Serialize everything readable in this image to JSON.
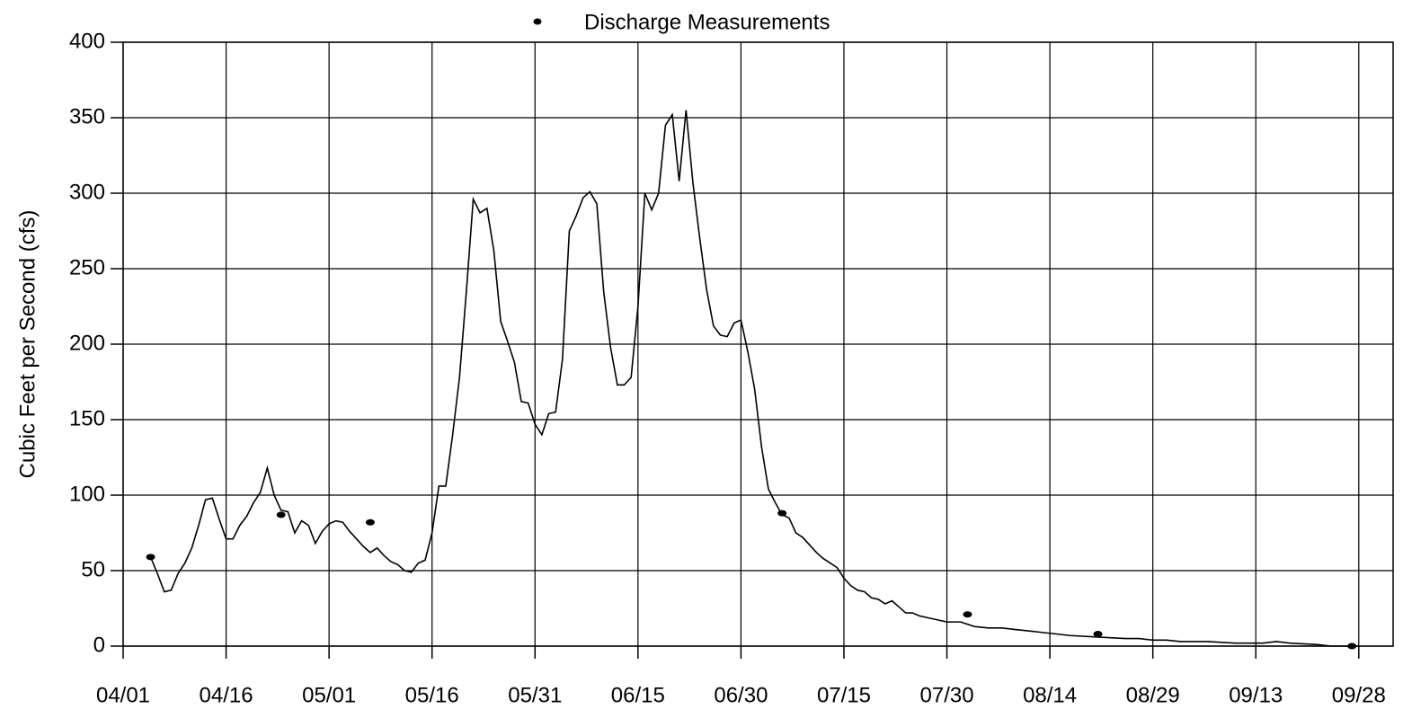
{
  "chart_data": {
    "type": "line",
    "ylabel": "Cubic Feet per Second (cfs)",
    "xlim": [
      0,
      185
    ],
    "ylim": [
      0,
      400
    ],
    "xticks": [
      {
        "value": 0,
        "label": "04/01"
      },
      {
        "value": 15,
        "label": "04/16"
      },
      {
        "value": 30,
        "label": "05/01"
      },
      {
        "value": 45,
        "label": "05/16"
      },
      {
        "value": 60,
        "label": "05/31"
      },
      {
        "value": 75,
        "label": "06/15"
      },
      {
        "value": 90,
        "label": "06/30"
      },
      {
        "value": 105,
        "label": "07/15"
      },
      {
        "value": 120,
        "label": "07/30"
      },
      {
        "value": 135,
        "label": "08/14"
      },
      {
        "value": 150,
        "label": "08/29"
      },
      {
        "value": 165,
        "label": "09/13"
      },
      {
        "value": 180,
        "label": "09/28"
      }
    ],
    "yticks": [
      0,
      50,
      100,
      150,
      200,
      250,
      300,
      350,
      400
    ],
    "grid": true,
    "legend": "top",
    "series": [
      {
        "type": "line",
        "color": "#000000",
        "x": [
          4,
          5,
          6,
          7,
          8,
          9,
          10,
          11,
          12,
          13,
          14,
          15,
          16,
          17,
          18,
          19,
          20,
          21,
          22,
          23,
          24,
          25,
          26,
          27,
          28,
          29,
          30,
          31,
          32,
          33,
          34,
          35,
          36,
          37,
          38,
          39,
          40,
          41,
          42,
          43,
          44,
          45,
          46,
          47,
          48,
          49,
          50,
          51,
          52,
          53,
          54,
          55,
          56,
          57,
          58,
          59,
          60,
          61,
          62,
          63,
          64,
          65,
          66,
          67,
          68,
          69,
          70,
          71,
          72,
          73,
          74,
          75,
          76,
          77,
          78,
          79,
          80,
          81,
          82,
          83,
          84,
          85,
          86,
          87,
          88,
          89,
          90,
          91,
          92,
          93,
          94,
          95,
          96,
          97,
          98,
          99,
          100,
          101,
          102,
          103,
          104,
          105,
          106,
          107,
          108,
          109,
          110,
          111,
          112,
          113,
          114,
          115,
          116,
          118,
          120,
          122,
          124,
          126,
          128,
          130,
          134,
          138,
          142,
          146,
          148,
          150,
          152,
          154,
          158,
          162,
          166,
          168,
          170,
          174,
          176,
          180
        ],
        "values": [
          59,
          48,
          36,
          37,
          48,
          55,
          65,
          80,
          97,
          98,
          84,
          71,
          71,
          80,
          86,
          95,
          102,
          118,
          100,
          90,
          89,
          75,
          83,
          80,
          68,
          76,
          81,
          83,
          82,
          76,
          71,
          66,
          62,
          65,
          60,
          56,
          54,
          50,
          49,
          55,
          57,
          75,
          106,
          106,
          140,
          178,
          235,
          296,
          287,
          290,
          262,
          215,
          202,
          188,
          162,
          161,
          147,
          140,
          154,
          155,
          190,
          275,
          285,
          297,
          301,
          293,
          235,
          198,
          173,
          173,
          178,
          225,
          300,
          289,
          300,
          345,
          352,
          308,
          355,
          307,
          270,
          236,
          212,
          206,
          205,
          214,
          216,
          195,
          170,
          132,
          104,
          95,
          87,
          85,
          75,
          72,
          67,
          62,
          58,
          55,
          52,
          45,
          40,
          37,
          36,
          32,
          31,
          28,
          30,
          26,
          22,
          22,
          20,
          18,
          16,
          16,
          13,
          12,
          12,
          11,
          9,
          7,
          6,
          5,
          5,
          4,
          4,
          3,
          3,
          2,
          2,
          3,
          2,
          1,
          0,
          0
        ]
      },
      {
        "type": "scatter",
        "name": "Discharge Measurements",
        "color": "#000000",
        "x": [
          4,
          23,
          36,
          96,
          123,
          142,
          179
        ],
        "values": [
          59,
          87,
          82,
          88,
          21,
          8,
          0
        ]
      }
    ]
  }
}
